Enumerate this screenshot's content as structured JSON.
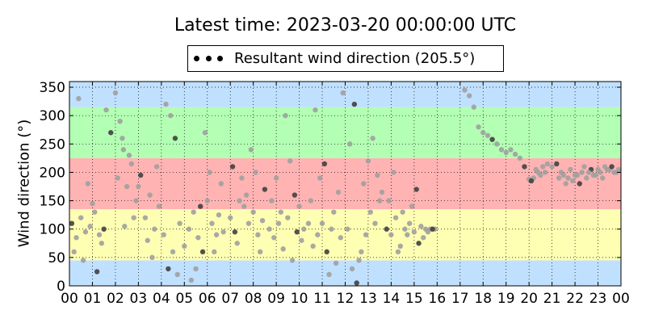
{
  "chart_data": {
    "type": "scatter",
    "title": "Latest time: 2023-03-20 00:00:00 UTC",
    "ylabel": "Wind direction (°)",
    "xlabel": "",
    "xlim": [
      0,
      24
    ],
    "ylim": [
      0,
      360
    ],
    "x_tick_labels": [
      "00",
      "01",
      "02",
      "03",
      "04",
      "05",
      "06",
      "07",
      "08",
      "09",
      "10",
      "11",
      "12",
      "13",
      "14",
      "15",
      "16",
      "17",
      "18",
      "19",
      "20",
      "21",
      "22",
      "23",
      "00"
    ],
    "y_ticks": [
      0,
      50,
      100,
      150,
      200,
      250,
      300,
      350
    ],
    "grid": true,
    "legend": {
      "label": "Resultant wind direction (205.5°)",
      "placement": "top-center"
    },
    "bands": [
      {
        "from": 0,
        "to": 45,
        "color": "#c0e0ff"
      },
      {
        "from": 45,
        "to": 135,
        "color": "#ffffb3"
      },
      {
        "from": 135,
        "to": 225,
        "color": "#ffb3b3"
      },
      {
        "from": 225,
        "to": 315,
        "color": "#b3ffb3"
      },
      {
        "from": 315,
        "to": 360,
        "color": "#c0e0ff"
      }
    ],
    "series": [
      {
        "color_light": "#a0a0a0",
        "color_dark": "#404040",
        "points": [
          [
            0.1,
            110
          ],
          [
            0.3,
            85
          ],
          [
            0.5,
            120
          ],
          [
            0.7,
            95
          ],
          [
            0.9,
            105
          ],
          [
            1.1,
            130
          ],
          [
            1.3,
            90
          ],
          [
            1.5,
            100
          ],
          [
            0.2,
            60
          ],
          [
            0.6,
            45
          ],
          [
            1.0,
            145
          ],
          [
            1.4,
            75
          ],
          [
            0.4,
            330
          ],
          [
            0.8,
            180
          ],
          [
            1.2,
            25
          ],
          [
            1.6,
            310
          ],
          [
            2.1,
            190
          ],
          [
            2.3,
            260
          ],
          [
            2.5,
            175
          ],
          [
            2.7,
            215
          ],
          [
            2.9,
            150
          ],
          [
            3.1,
            195
          ],
          [
            2.2,
            290
          ],
          [
            2.6,
            230
          ],
          [
            2.4,
            105
          ],
          [
            2.8,
            120
          ],
          [
            3.0,
            175
          ],
          [
            2.0,
            340
          ],
          [
            1.8,
            270
          ],
          [
            2.35,
            240
          ],
          [
            3.3,
            120
          ],
          [
            3.5,
            160
          ],
          [
            3.7,
            100
          ],
          [
            3.9,
            140
          ],
          [
            4.1,
            90
          ],
          [
            4.3,
            30
          ],
          [
            4.5,
            60
          ],
          [
            4.7,
            20
          ],
          [
            3.4,
            80
          ],
          [
            3.8,
            210
          ],
          [
            4.2,
            320
          ],
          [
            4.4,
            300
          ],
          [
            4.6,
            260
          ],
          [
            4.8,
            110
          ],
          [
            5.0,
            70
          ],
          [
            3.6,
            50
          ],
          [
            5.2,
            100
          ],
          [
            5.4,
            130
          ],
          [
            5.6,
            85
          ],
          [
            5.8,
            60
          ],
          [
            6.0,
            150
          ],
          [
            6.2,
            110
          ],
          [
            6.4,
            90
          ],
          [
            6.6,
            180
          ],
          [
            5.3,
            10
          ],
          [
            5.5,
            30
          ],
          [
            5.7,
            140
          ],
          [
            6.1,
            200
          ],
          [
            6.3,
            60
          ],
          [
            6.5,
            125
          ],
          [
            5.9,
            270
          ],
          [
            6.7,
            95
          ],
          [
            7.0,
            120
          ],
          [
            7.2,
            95
          ],
          [
            7.4,
            150
          ],
          [
            7.6,
            140
          ],
          [
            7.8,
            110
          ],
          [
            8.0,
            130
          ],
          [
            8.2,
            90
          ],
          [
            8.4,
            115
          ],
          [
            7.1,
            210
          ],
          [
            7.3,
            75
          ],
          [
            7.5,
            190
          ],
          [
            7.7,
            160
          ],
          [
            7.9,
            240
          ],
          [
            8.1,
            200
          ],
          [
            8.3,
            60
          ],
          [
            8.5,
            170
          ],
          [
            8.7,
            100
          ],
          [
            8.9,
            85
          ],
          [
            9.1,
            110
          ],
          [
            9.3,
            65
          ],
          [
            9.5,
            120
          ],
          [
            9.7,
            45
          ],
          [
            9.9,
            95
          ],
          [
            10.1,
            80
          ],
          [
            8.8,
            150
          ],
          [
            9.0,
            190
          ],
          [
            9.2,
            130
          ],
          [
            9.4,
            300
          ],
          [
            9.6,
            220
          ],
          [
            9.8,
            160
          ],
          [
            10.0,
            140
          ],
          [
            10.2,
            100
          ],
          [
            10.4,
            110
          ],
          [
            10.6,
            70
          ],
          [
            10.8,
            90
          ],
          [
            11.0,
            110
          ],
          [
            11.2,
            60
          ],
          [
            11.4,
            100
          ],
          [
            11.6,
            40
          ],
          [
            11.8,
            85
          ],
          [
            10.5,
            150
          ],
          [
            10.7,
            310
          ],
          [
            10.9,
            190
          ],
          [
            11.1,
            215
          ],
          [
            11.3,
            20
          ],
          [
            11.5,
            130
          ],
          [
            11.7,
            165
          ],
          [
            11.9,
            340
          ],
          [
            12.1,
            100
          ],
          [
            12.3,
            30
          ],
          [
            12.5,
            5
          ],
          [
            12.7,
            60
          ],
          [
            12.9,
            90
          ],
          [
            13.1,
            130
          ],
          [
            13.3,
            110
          ],
          [
            13.5,
            150
          ],
          [
            12.2,
            250
          ],
          [
            12.4,
            320
          ],
          [
            12.6,
            45
          ],
          [
            12.8,
            180
          ],
          [
            13.0,
            220
          ],
          [
            13.2,
            260
          ],
          [
            13.4,
            195
          ],
          [
            13.6,
            165
          ],
          [
            13.8,
            100
          ],
          [
            14.0,
            90
          ],
          [
            14.2,
            120
          ],
          [
            14.4,
            70
          ],
          [
            14.6,
            100
          ],
          [
            14.8,
            110
          ],
          [
            15.0,
            95
          ],
          [
            15.2,
            75
          ],
          [
            13.9,
            150
          ],
          [
            14.1,
            200
          ],
          [
            14.3,
            60
          ],
          [
            14.5,
            130
          ],
          [
            14.7,
            90
          ],
          [
            14.9,
            140
          ],
          [
            15.1,
            170
          ],
          [
            15.3,
            105
          ],
          [
            15.5,
            100
          ],
          [
            15.7,
            100
          ],
          [
            15.9,
            100
          ],
          [
            15.4,
            85
          ],
          [
            15.6,
            95
          ],
          [
            15.8,
            100
          ],
          [
            17.2,
            345
          ],
          [
            17.4,
            335
          ],
          [
            17.6,
            315
          ],
          [
            17.8,
            280
          ],
          [
            18.0,
            270
          ],
          [
            18.2,
            265
          ],
          [
            18.4,
            258
          ],
          [
            18.6,
            250
          ],
          [
            18.8,
            240
          ],
          [
            19.0,
            235
          ],
          [
            19.2,
            240
          ],
          [
            19.4,
            232
          ],
          [
            19.6,
            225
          ],
          [
            19.8,
            210
          ],
          [
            20.0,
            188
          ],
          [
            20.2,
            190
          ],
          [
            20.4,
            200
          ],
          [
            20.6,
            210
          ],
          [
            20.8,
            215
          ],
          [
            21.0,
            210
          ],
          [
            21.2,
            215
          ],
          [
            21.5,
            195
          ],
          [
            21.7,
            190
          ],
          [
            21.9,
            185
          ],
          [
            22.1,
            195
          ],
          [
            22.3,
            200
          ],
          [
            22.5,
            190
          ],
          [
            22.7,
            205
          ],
          [
            22.9,
            195
          ],
          [
            23.1,
            200
          ],
          [
            23.3,
            210
          ],
          [
            23.5,
            205
          ],
          [
            23.7,
            200
          ],
          [
            23.9,
            205
          ],
          [
            20.1,
            185
          ],
          [
            20.3,
            205
          ],
          [
            20.5,
            195
          ],
          [
            20.7,
            200
          ],
          [
            21.6,
            180
          ],
          [
            21.8,
            205
          ],
          [
            22.0,
            195
          ],
          [
            22.2,
            180
          ],
          [
            22.4,
            210
          ],
          [
            22.6,
            200
          ],
          [
            22.8,
            195
          ],
          [
            23.0,
            205
          ],
          [
            23.2,
            190
          ],
          [
            23.4,
            205
          ],
          [
            23.6,
            210
          ],
          [
            23.8,
            200
          ],
          [
            21.4,
            200
          ],
          [
            21.3,
            190
          ]
        ]
      }
    ]
  }
}
